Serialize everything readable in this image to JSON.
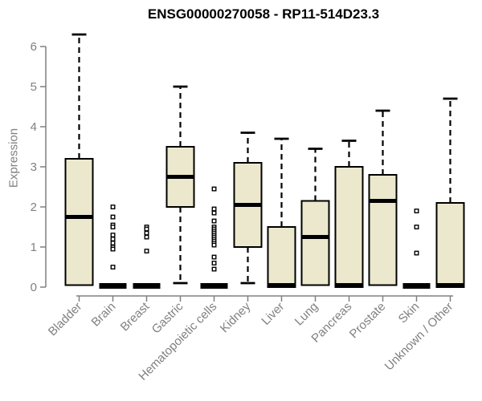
{
  "title": "ENSG00000270058 - RP11-514D23.3",
  "colors": {
    "box_fill": "#ece8cd",
    "box_stroke": "#000000",
    "median": "#000000",
    "whisker": "#000000",
    "axis": "#808080",
    "label": "#808080",
    "title": "#000000",
    "background": "#ffffff"
  },
  "chart_data": {
    "type": "boxplot",
    "title": "ENSG00000270058 - RP11-514D23.3",
    "xlabel": "",
    "ylabel": "Expression",
    "ylim": [
      0,
      6
    ],
    "yticks": [
      0,
      1,
      2,
      3,
      4,
      5,
      6
    ],
    "grid": false,
    "legend": "none",
    "categories": [
      "Bladder",
      "Brain",
      "Breast",
      "Gastric",
      "Hematopoietic cells",
      "Kidney",
      "Liver",
      "Lung",
      "Pancreas",
      "Prostate",
      "Skin",
      "Unknown / Other"
    ],
    "boxes": [
      {
        "category": "Bladder",
        "low": 0.05,
        "q1": 0.05,
        "median": 1.75,
        "q3": 3.2,
        "high": 6.3,
        "flat": false,
        "outliers": []
      },
      {
        "category": "Brain",
        "low": 0,
        "q1": 0,
        "median": 0.02,
        "q3": 0.08,
        "high": 0.08,
        "flat": true,
        "outliers": [
          2.0,
          1.75,
          1.55,
          1.5,
          1.3,
          1.2,
          1.1,
          1.0,
          0.95,
          0.5
        ]
      },
      {
        "category": "Breast",
        "low": 0,
        "q1": 0,
        "median": 0.02,
        "q3": 0.08,
        "high": 0.08,
        "flat": true,
        "outliers": [
          1.5,
          1.45,
          1.35,
          1.25,
          0.9
        ]
      },
      {
        "category": "Gastric",
        "low": 0.1,
        "q1": 2.0,
        "median": 2.75,
        "q3": 3.5,
        "high": 5.0,
        "flat": false,
        "outliers": []
      },
      {
        "category": "Hematopoietic cells",
        "low": 0,
        "q1": 0,
        "median": 0.02,
        "q3": 0.08,
        "high": 0.08,
        "flat": true,
        "outliers": [
          2.45,
          1.95,
          1.85,
          1.65,
          1.5,
          1.45,
          1.4,
          1.35,
          1.3,
          1.25,
          1.2,
          1.15,
          1.1,
          1.05,
          0.75,
          0.6,
          0.45
        ]
      },
      {
        "category": "Kidney",
        "low": 0.1,
        "q1": 1.0,
        "median": 2.05,
        "q3": 3.1,
        "high": 3.85,
        "flat": false,
        "outliers": []
      },
      {
        "category": "Liver",
        "low": 0,
        "q1": 0,
        "median": 0.05,
        "q3": 1.5,
        "high": 3.7,
        "flat": false,
        "outliers": []
      },
      {
        "category": "Lung",
        "low": 0.05,
        "q1": 0.05,
        "median": 1.25,
        "q3": 2.15,
        "high": 3.45,
        "flat": false,
        "outliers": []
      },
      {
        "category": "Pancreas",
        "low": 0,
        "q1": 0,
        "median": 0.05,
        "q3": 3.0,
        "high": 3.65,
        "flat": false,
        "outliers": []
      },
      {
        "category": "Prostate",
        "low": 0.05,
        "q1": 0.05,
        "median": 2.15,
        "q3": 2.8,
        "high": 4.4,
        "flat": false,
        "outliers": []
      },
      {
        "category": "Skin",
        "low": 0,
        "q1": 0,
        "median": 0.02,
        "q3": 0.08,
        "high": 0.08,
        "flat": true,
        "outliers": [
          1.9,
          1.5,
          0.85
        ]
      },
      {
        "category": "Unknown / Other",
        "low": 0,
        "q1": 0,
        "median": 0.05,
        "q3": 2.1,
        "high": 4.7,
        "flat": false,
        "outliers": []
      }
    ]
  }
}
